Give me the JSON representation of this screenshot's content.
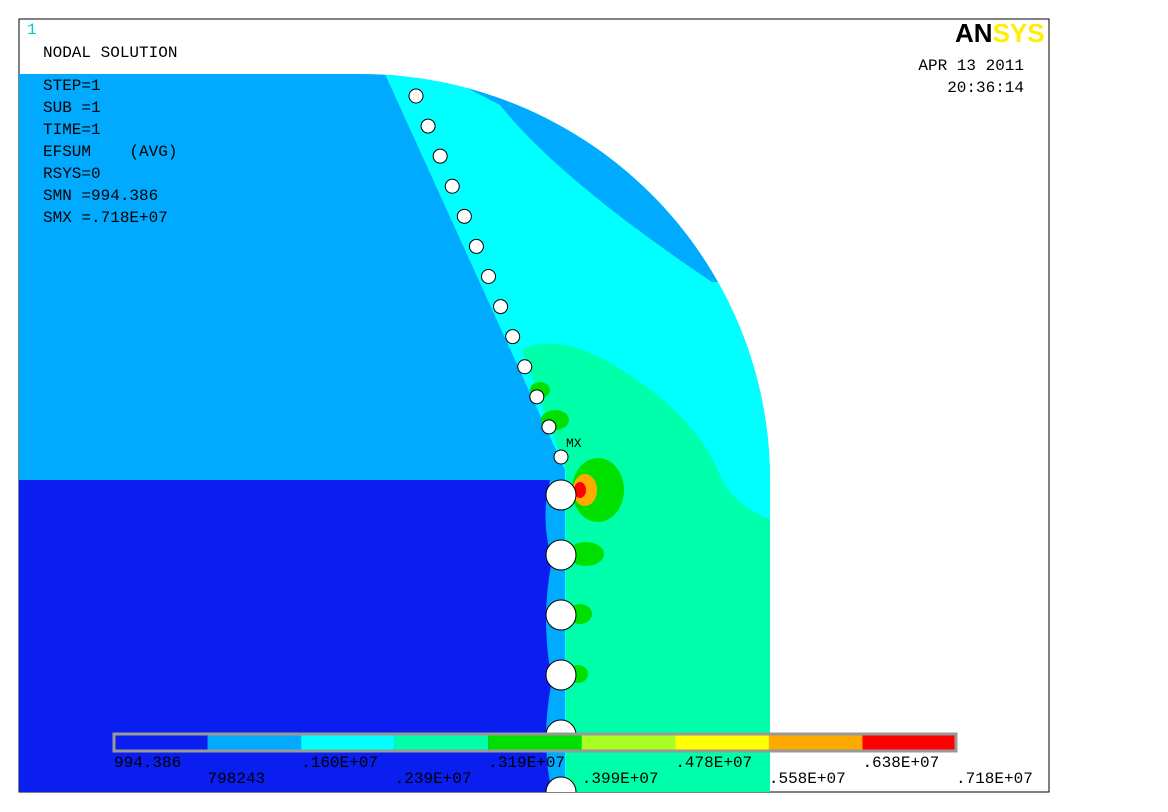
{
  "window_number": "1",
  "header": {
    "title": "NODAL SOLUTION",
    "logo": [
      "AN",
      "SYS"
    ],
    "date": "APR 13 2011",
    "time": "20:36:14"
  },
  "info": [
    "STEP=1",
    "SUB =1",
    "TIME=1",
    "EFSUM    (AVG)",
    "RSYS=0",
    "SMN =994.386",
    "SMX =.718E+07"
  ],
  "marker": "MX",
  "legend": {
    "labels": [
      "994.386",
      "798243",
      ".160E+07",
      ".239E+07",
      ".319E+07",
      ".399E+07",
      ".478E+07",
      ".558E+07",
      ".638E+07",
      ".718E+07"
    ],
    "colors": [
      "#0a1ef0",
      "#00aaff",
      "#00ffff",
      "#00ffaa",
      "#00e000",
      "#aaff22",
      "#ffff00",
      "#ffaa00",
      "#ff0000"
    ]
  }
}
